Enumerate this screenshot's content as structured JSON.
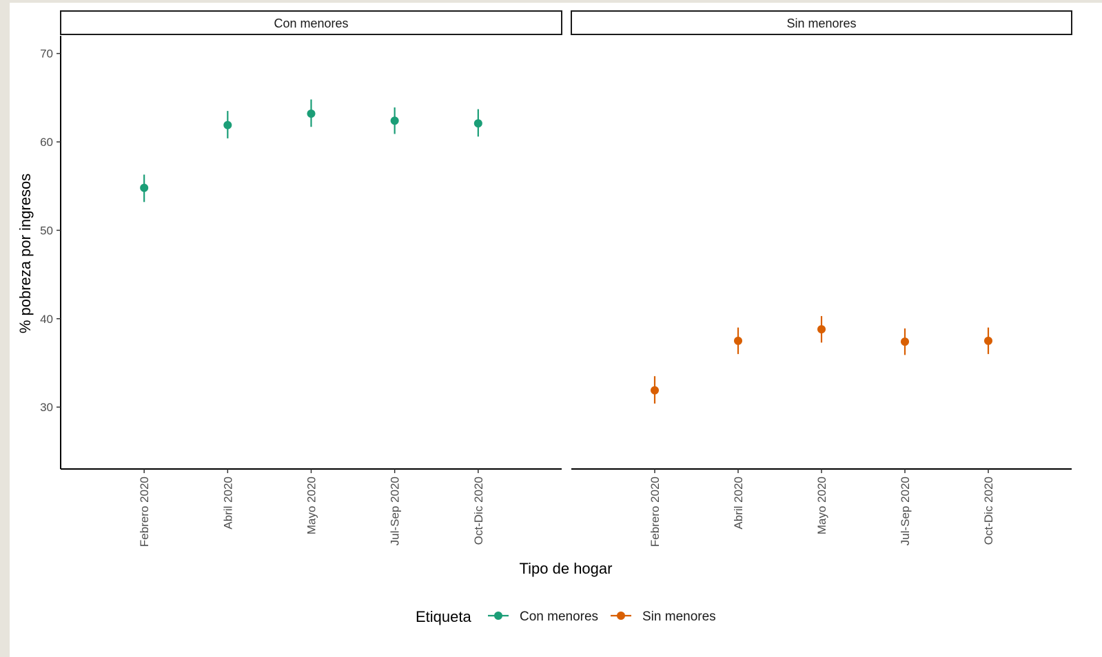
{
  "chart_data": {
    "type": "scatter",
    "subtype": "pointrange-faceted",
    "xlabel": "Tipo de hogar",
    "ylabel": "% pobreza por ingresos",
    "ylim": [
      23,
      72
    ],
    "yticks": [
      30,
      40,
      50,
      60,
      70
    ],
    "categories": [
      "Febrero 2020",
      "Abril 2020",
      "Mayo 2020",
      "Jul-Sep 2020",
      "Oct-Dic 2020"
    ],
    "facets": [
      "Con menores",
      "Sin menores"
    ],
    "grid": false,
    "legend": {
      "title": "Etiqueta",
      "position": "bottom",
      "entries": [
        "Con menores",
        "Sin menores"
      ]
    },
    "series": [
      {
        "name": "Con menores",
        "facet": "Con menores",
        "color": "#1b9e77",
        "values": [
          54.8,
          61.9,
          63.2,
          62.4,
          62.1
        ],
        "lower": [
          53.2,
          60.4,
          61.7,
          60.9,
          60.6
        ],
        "upper": [
          56.3,
          63.5,
          64.8,
          63.9,
          63.7
        ]
      },
      {
        "name": "Sin menores",
        "facet": "Sin menores",
        "color": "#d95f02",
        "values": [
          31.9,
          37.5,
          38.8,
          37.4,
          37.5
        ],
        "lower": [
          30.4,
          36.0,
          37.3,
          35.9,
          36.0
        ],
        "upper": [
          33.5,
          39.0,
          40.3,
          38.9,
          39.0
        ]
      }
    ]
  }
}
